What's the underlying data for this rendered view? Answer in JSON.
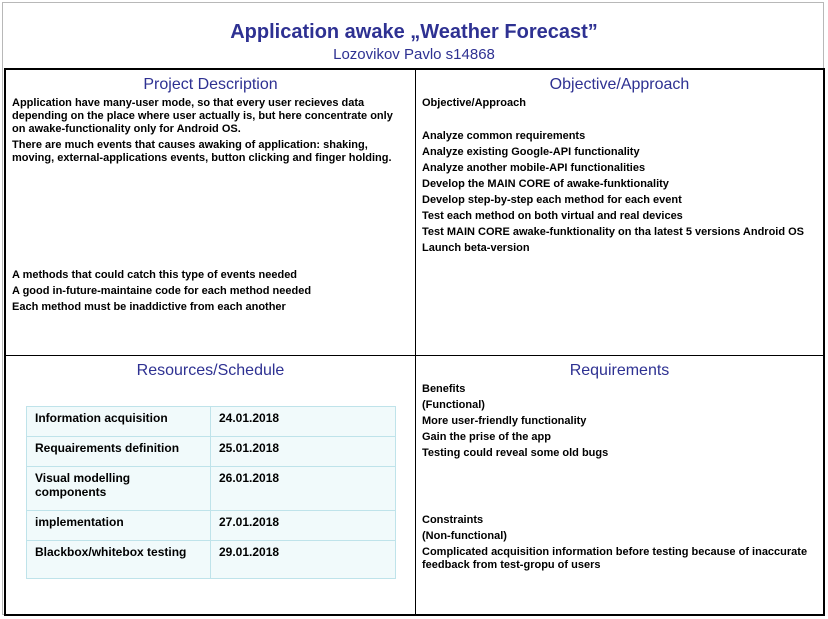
{
  "header": {
    "title": "Application awake „Weather Forecast”",
    "subtitle": "Lozovikov Pavlo s14868"
  },
  "project_description": {
    "heading": "Project Description",
    "paragraphs": [
      "Application have many-user mode, so that every user recieves data depending on the place where user actually is, but here concentrate only on awake-functionality only for Android OS.",
      "There are much events that causes awaking of application: shaking, moving, external-applications events, button clicking and finger holding."
    ],
    "needs": [
      "A methods that could catch this type of events needed",
      "A good in-future-maintaine code for each method needed",
      "Each method must be inaddictive from each another"
    ]
  },
  "objective": {
    "heading": "Objective/Approach",
    "subheading": "Objective/Approach",
    "items": [
      "Analyze common requirements",
      "Analyze existing Google-API functionality",
      "Analyze another mobile-API functionalities",
      "Develop the MAIN CORE of awake-funktionality",
      "Develop step-by-step each method for each event",
      "Test each method on both virtual and real devices",
      "Test MAIN CORE awake-funktionality on tha latest 5 versions Android OS",
      "Launch beta-version"
    ]
  },
  "resources": {
    "heading": "Resources/Schedule",
    "rows": [
      {
        "task": "Information acquisition",
        "date": "24.01.2018"
      },
      {
        "task": "Requairements definition",
        "date": "25.01.2018"
      },
      {
        "task": "Visual modelling components",
        "date": "26.01.2018"
      },
      {
        "task": "implementation",
        "date": "27.01.2018"
      },
      {
        "task": "Blackbox/whitebox testing",
        "date": "29.01.2018"
      }
    ]
  },
  "requirements": {
    "heading": "Requirements",
    "benefits": [
      "Benefits",
      "(Functional)",
      "More user-friendly functionality",
      "Gain the prise of the app",
      "Testing could reveal some old bugs"
    ],
    "constraints": [
      "Constraints",
      "(Non-functional)",
      "Complicated acquisition information before testing because of inaccurate feedback from test-gropu of users"
    ]
  }
}
